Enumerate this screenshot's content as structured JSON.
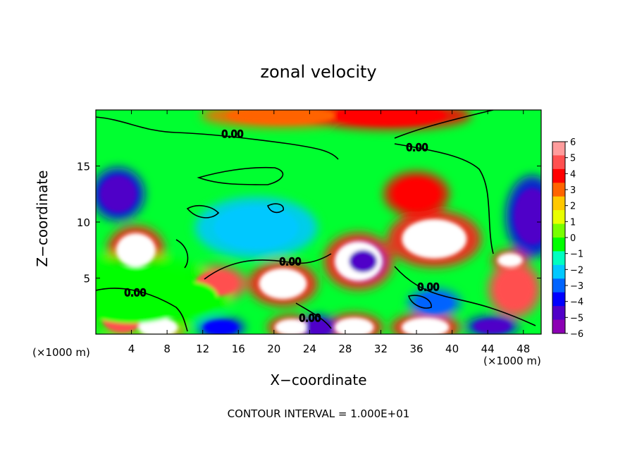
{
  "chart_data": {
    "type": "heatmap",
    "title": "zonal velocity",
    "xlabel": "X−coordinate",
    "ylabel": "Z−coordinate",
    "x_unit_left": "(×1000 m)",
    "x_unit_right": "(×1000 m)",
    "xlim": [
      0,
      50
    ],
    "ylim": [
      0,
      20
    ],
    "x_ticks": [
      "4",
      "8",
      "12",
      "16",
      "20",
      "24",
      "28",
      "32",
      "36",
      "40",
      "44",
      "48"
    ],
    "y_ticks": [
      "5",
      "10",
      "15"
    ],
    "colorbar": {
      "range": [
        -6,
        6
      ],
      "labels": [
        "6",
        "5",
        "4",
        "3",
        "2",
        "1",
        "0",
        "−1",
        "−2",
        "−3",
        "−4",
        "−5",
        "−6"
      ],
      "colors": [
        "#ff9c9c",
        "#ff5050",
        "#ff0000",
        "#ff6400",
        "#ffc800",
        "#e8ff00",
        "#78ff00",
        "#00ff00",
        "#00ffc0",
        "#00c8ff",
        "#0064ff",
        "#0000ff",
        "#5000c8",
        "#8c00b4"
      ]
    },
    "contour_labels": [
      "0.00",
      "0.00",
      "0.00",
      "0.00",
      "0.00",
      "0.00"
    ],
    "footer": "CONTOUR INTERVAL = 1.000E+01",
    "features": [
      {
        "x": 4.5,
        "z": 7.5,
        "value": 8
      },
      {
        "x": 2.5,
        "z": 12.5,
        "value": -5
      },
      {
        "x": 13.5,
        "z": 4.5,
        "value": 5
      },
      {
        "x": 21,
        "z": 4.5,
        "value": 7
      },
      {
        "x": 29.5,
        "z": 6.5,
        "value": 7
      },
      {
        "x": 30,
        "z": 6.5,
        "value": -5
      },
      {
        "x": 38,
        "z": 8.5,
        "value": 7
      },
      {
        "x": 36,
        "z": 12.5,
        "value": 4
      },
      {
        "x": 46.5,
        "z": 6.6,
        "value": 8
      },
      {
        "x": 47,
        "z": 4,
        "value": 5
      },
      {
        "x": 49,
        "z": 10.5,
        "value": -5
      },
      {
        "x": 3,
        "z": 1.5,
        "value": 5
      },
      {
        "x": 7,
        "z": 0.6,
        "value": 8
      },
      {
        "x": 22,
        "z": 0.6,
        "value": 8
      },
      {
        "x": 29,
        "z": 0.6,
        "value": 8
      },
      {
        "x": 37,
        "z": 0.6,
        "value": 8
      },
      {
        "x": 21,
        "z": 19.5,
        "value": 3
      },
      {
        "x": 33,
        "z": 19.5,
        "value": 4
      },
      {
        "x": 18,
        "z": 9.5,
        "value": -2
      },
      {
        "x": 10.5,
        "z": 3.3,
        "value": 0
      },
      {
        "x": 25,
        "z": 0.6,
        "value": -5
      },
      {
        "x": 44.5,
        "z": 0.7,
        "value": -5
      },
      {
        "x": 14,
        "z": 0.6,
        "value": -4
      },
      {
        "x": 38,
        "z": 2.8,
        "value": -3
      },
      {
        "x": 4,
        "z": 3.5,
        "value": 0
      }
    ]
  }
}
